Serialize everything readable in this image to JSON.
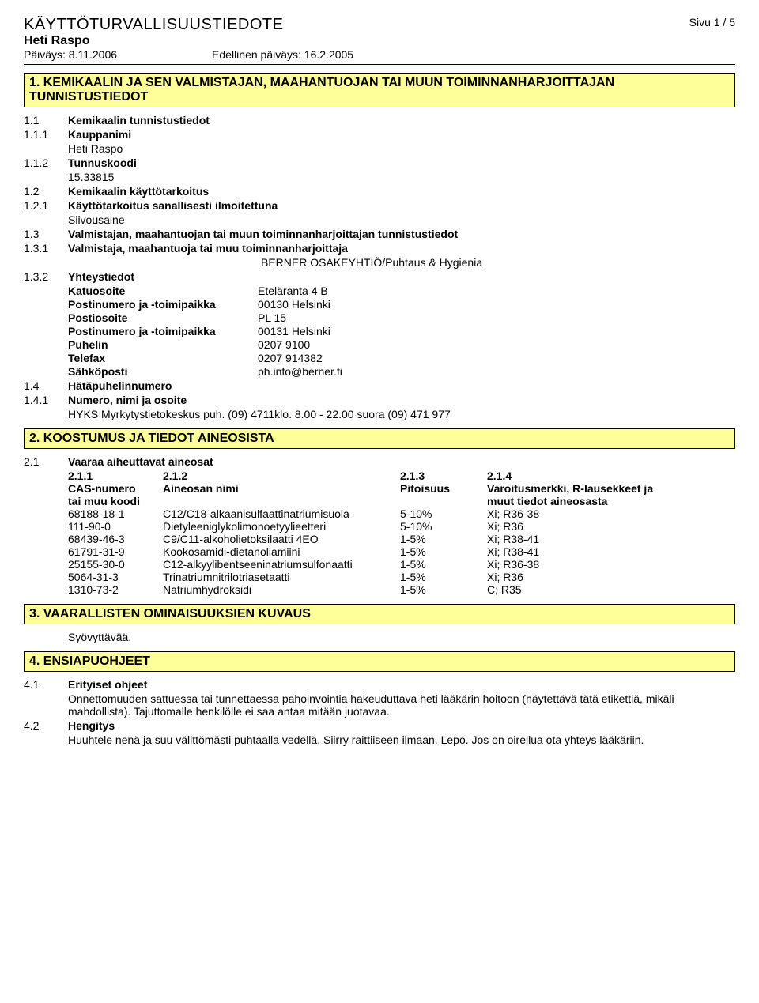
{
  "header": {
    "doc_title": "KÄYTTÖTURVALLISUUSTIEDOTE",
    "product": "Heti Raspo",
    "date_label": "Päiväys: 8.11.2006",
    "prev_date_label": "Edellinen päiväys: 16.2.2005",
    "page": "Sivu  1 / 5"
  },
  "s1": {
    "title": "1. KEMIKAALIN JA SEN VALMISTAJAN, MAAHANTUOJAN TAI MUUN TOIMINNANHARJOITTAJAN TUNNISTUSTIEDOT",
    "r11_n": "1.1",
    "r11_l": "Kemikaalin tunnistustiedot",
    "r111_n": "1.1.1",
    "r111_l": "Kauppanimi",
    "r111_v": "Heti Raspo",
    "r112_n": "1.1.2",
    "r112_l": "Tunnuskoodi",
    "r112_v": "15.33815",
    "r12_n": "1.2",
    "r12_l": "Kemikaalin käyttötarkoitus",
    "r121_n": "1.2.1",
    "r121_l": "Käyttötarkoitus sanallisesti ilmoitettuna",
    "r121_v": "Siivousaine",
    "r13_n": "1.3",
    "r13_l": "Valmistajan, maahantuojan tai muun toiminnanharjoittajan tunnistustiedot",
    "r131_n": "1.3.1",
    "r131_l": "Valmistaja, maahantuoja tai muu toiminnanharjoittaja",
    "r131_v": "BERNER OSAKEYHTIÖ/Puhtaus & Hygienia",
    "r132_n": "1.3.2",
    "r132_l": "Yhteystiedot",
    "contact": {
      "street_k": "Katuosoite",
      "street_v": "Eteläranta 4 B",
      "post1_k": "Postinumero ja -toimipaikka",
      "post1_v": "00130 Helsinki",
      "box_k": "Postiosoite",
      "box_v": "PL 15",
      "post2_k": "Postinumero ja -toimipaikka",
      "post2_v": "00131 Helsinki",
      "tel_k": "Puhelin",
      "tel_v": "0207 9100",
      "fax_k": "Telefax",
      "fax_v": "0207 914382",
      "mail_k": "Sähköposti",
      "mail_v": "ph.info@berner.fi"
    },
    "r14_n": "1.4",
    "r14_l": "Hätäpuhelinnumero",
    "r141_n": "1.4.1",
    "r141_l": "Numero, nimi ja osoite",
    "r141_v": "HYKS Myrkytystietokeskus  puh. (09) 4711klo. 8.00 - 22.00 suora (09) 471 977"
  },
  "s2": {
    "title": "2. KOOSTUMUS JA TIEDOT AINEOSISTA",
    "r21_n": "2.1",
    "r21_l": "Vaaraa aiheuttavat aineosat",
    "h211": "2.1.1",
    "h212": "2.1.2",
    "h213": "2.1.3",
    "h214": "2.1.4",
    "hc1a": "CAS-numero",
    "hc1b": "tai muu koodi",
    "hc2": "Aineosan nimi",
    "hc3": "Pitoisuus",
    "hc4a": "Varoitusmerkki, R-lausekkeet ja",
    "hc4b": "muut tiedot aineosasta",
    "rows": [
      {
        "c1": "68188-18-1",
        "c2": "C12/C18-alkaanisulfaattinatriumisuola",
        "c3": "5-10%",
        "c4": "Xi; R36-38"
      },
      {
        "c1": "111-90-0",
        "c2": "Dietyleeniglykolimonoetyylieetteri",
        "c3": "5-10%",
        "c4": "Xi; R36"
      },
      {
        "c1": "68439-46-3",
        "c2": "C9/C11-alkoholietoksilaatti 4EO",
        "c3": "1-5%",
        "c4": "Xi; R38-41"
      },
      {
        "c1": "61791-31-9",
        "c2": "Kookosamidi-dietanoliamiini",
        "c3": "1-5%",
        "c4": "Xi; R38-41"
      },
      {
        "c1": "25155-30-0",
        "c2": "C12-alkyylibentseeninatriumsulfonaatti",
        "c3": "1-5%",
        "c4": "Xi; R36-38"
      },
      {
        "c1": "5064-31-3",
        "c2": "Trinatriumnitrilotriasetaatti",
        "c3": "1-5%",
        "c4": "Xi; R36"
      },
      {
        "c1": "1310-73-2",
        "c2": "Natriumhydroksidi",
        "c3": "1-5%",
        "c4": "C; R35"
      }
    ]
  },
  "s3": {
    "title": "3. VAARALLISTEN OMINAISUUKSIEN KUVAUS",
    "body": "Syövyttävää."
  },
  "s4": {
    "title": "4. ENSIAPUOHJEET",
    "r41_n": "4.1",
    "r41_l": "Erityiset ohjeet",
    "r41_v": "Onnettomuuden sattuessa tai tunnettaessa pahoinvointia hakeuduttava heti lääkärin hoitoon (näytettävä tätä etikettiä, mikäli mahdollista). Tajuttomalle henkilölle ei saa antaa mitään juotavaa.",
    "r42_n": "4.2",
    "r42_l": "Hengitys",
    "r42_v": "Huuhtele nenä ja suu välittömästi puhtaalla vedellä. Siirry raittiiseen ilmaan. Lepo. Jos on oireilua ota yhteys lääkäriin."
  }
}
